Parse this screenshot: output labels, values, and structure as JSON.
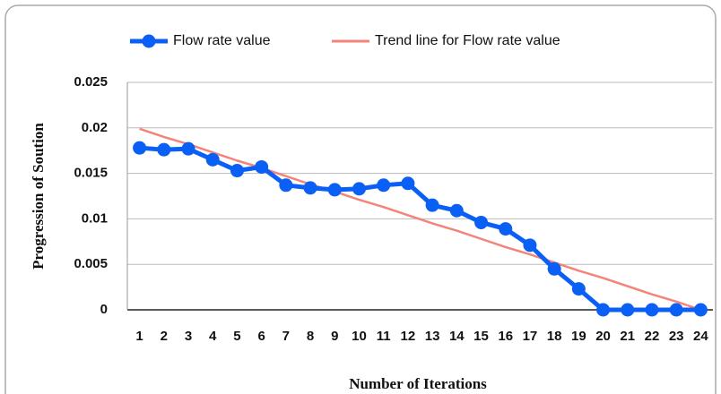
{
  "chart_data": {
    "type": "line",
    "categories": [
      "1",
      "2",
      "3",
      "4",
      "5",
      "6",
      "7",
      "8",
      "9",
      "10",
      "11",
      "12",
      "13",
      "14",
      "15",
      "16",
      "17",
      "18",
      "19",
      "20",
      "21",
      "22",
      "23",
      "24"
    ],
    "series": [
      {
        "name": "Flow rate value",
        "color": "#0a5ff5",
        "marker": true,
        "values": [
          0.0178,
          0.0176,
          0.0177,
          0.0165,
          0.0153,
          0.0157,
          0.0137,
          0.0134,
          0.0132,
          0.0133,
          0.0137,
          0.0139,
          0.0115,
          0.0109,
          0.0096,
          0.0089,
          0.0071,
          0.0045,
          0.0023,
          0,
          0,
          0,
          0,
          0
        ]
      },
      {
        "name": "Trend line for Flow rate value",
        "color": "#f4847a",
        "marker": false,
        "values": [
          0.0199,
          0.019,
          0.0182,
          0.0173,
          0.0164,
          0.0156,
          0.0147,
          0.0138,
          0.013,
          0.0121,
          0.0113,
          0.0104,
          0.0095,
          0.0087,
          0.0078,
          0.0069,
          0.0061,
          0.0052,
          0.0043,
          0.0035,
          0.0026,
          0.0017,
          0.0009,
          0.0
        ]
      }
    ],
    "x_label": "Number of Iterations",
    "y_label": "Progression of Soution",
    "ylim": [
      0,
      0.025
    ],
    "yticks": [
      0,
      0.005,
      0.01,
      0.015,
      0.02,
      0.025
    ],
    "grid": true,
    "legend": "top"
  }
}
